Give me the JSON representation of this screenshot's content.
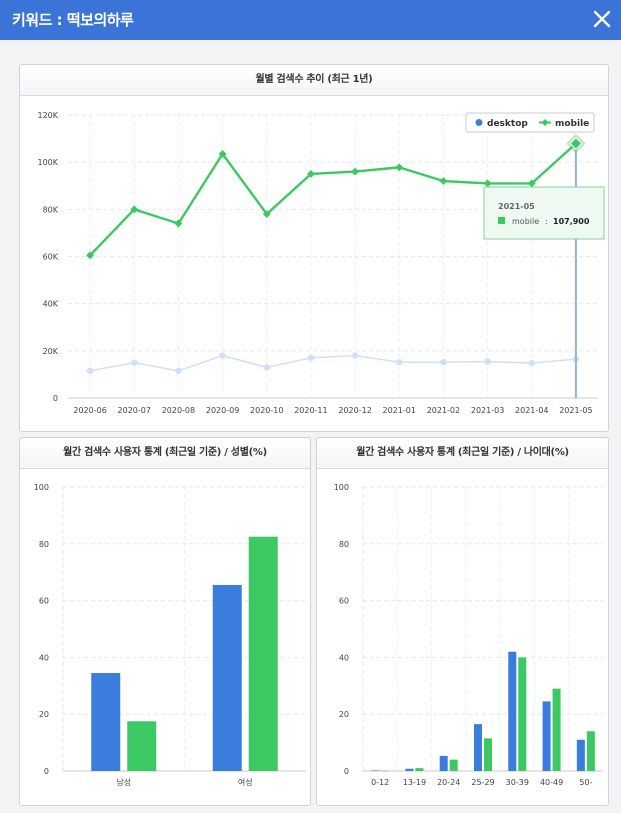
{
  "header": {
    "title": "키워드 : 떡보의하루"
  },
  "colors": {
    "desktop": "#3b7ddd",
    "mobile": "#3cc862",
    "header": "#3a74d6"
  },
  "monthly": {
    "title": "월별 검색수 추이 (최근 1년)",
    "legend": {
      "desktop": "desktop",
      "mobile": "mobile"
    },
    "tooltip": {
      "month": "2021-05",
      "series_label": "mobile",
      "separator": ":",
      "value": "107,900"
    },
    "chart_data": {
      "type": "line",
      "title": "월별 검색수 추이 (최근 1년)",
      "x": [
        "2020-06",
        "2020-07",
        "2020-08",
        "2020-09",
        "2020-10",
        "2020-11",
        "2020-12",
        "2021-01",
        "2021-02",
        "2021-03",
        "2021-04",
        "2021-05"
      ],
      "y_ticks": [
        "0",
        "20K",
        "40K",
        "60K",
        "80K",
        "100K",
        "120K"
      ],
      "ylim": [
        0,
        120000
      ],
      "series": [
        {
          "name": "desktop",
          "values": [
            11500,
            15000,
            11500,
            18000,
            13000,
            17000,
            18000,
            15200,
            15200,
            15500,
            14800,
            16500
          ]
        },
        {
          "name": "mobile",
          "values": [
            60500,
            80000,
            74000,
            103500,
            78000,
            95000,
            96000,
            97800,
            92000,
            91000,
            91000,
            107900
          ]
        }
      ]
    }
  },
  "gender": {
    "title": "월간 검색수 사용자 통계 (최근일 기준) / 성별(%)",
    "chart_data": {
      "type": "bar",
      "categories": [
        "남성",
        "여성"
      ],
      "y_ticks": [
        "0",
        "20",
        "40",
        "60",
        "80",
        "100"
      ],
      "ylim": [
        0,
        100
      ],
      "series": [
        {
          "name": "desktop",
          "values": [
            34.5,
            65.5
          ]
        },
        {
          "name": "mobile",
          "values": [
            17.5,
            82.5
          ]
        }
      ]
    }
  },
  "age": {
    "title": "월간 검색수 사용자 통계 (최근일 기준) / 나이대(%)",
    "chart_data": {
      "type": "bar",
      "categories": [
        "0-12",
        "13-19",
        "20-24",
        "25-29",
        "30-39",
        "40-49",
        "50-"
      ],
      "y_ticks": [
        "0",
        "20",
        "40",
        "60",
        "80",
        "100"
      ],
      "ylim": [
        0,
        100
      ],
      "series": [
        {
          "name": "desktop",
          "values": [
            0.2,
            0.8,
            5.3,
            16.5,
            42,
            24.5,
            11
          ]
        },
        {
          "name": "mobile",
          "values": [
            0.1,
            1,
            4,
            11.5,
            40,
            29,
            14
          ]
        }
      ]
    }
  }
}
